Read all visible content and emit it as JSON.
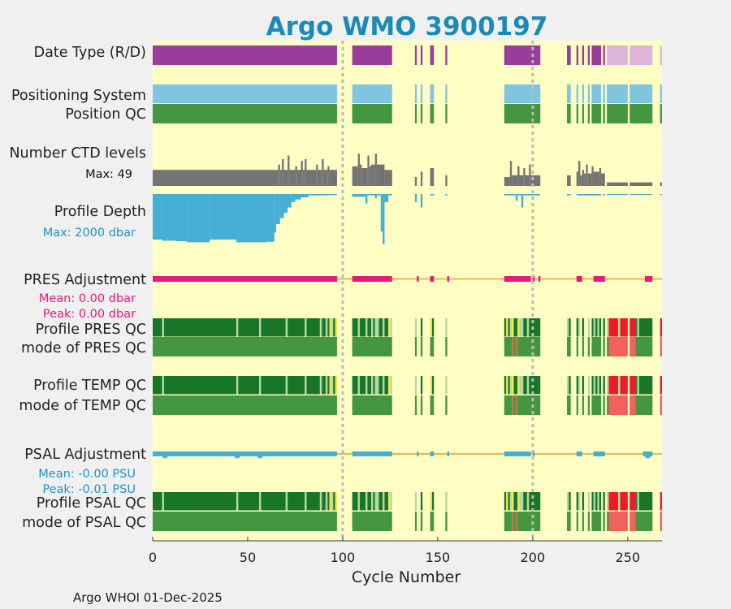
{
  "chart_data": {
    "type": "timeline",
    "title": "Argo WMO 3900197",
    "xlabel": "Cycle Number",
    "xlim": [
      0,
      268
    ],
    "xticks": [
      "0",
      "50",
      "100",
      "150",
      "200",
      "250"
    ],
    "xtick_values": [
      0,
      50,
      100,
      150,
      200,
      250
    ],
    "dashed_markers": [
      100,
      200
    ],
    "footer": "Argo WHOI 01-Dec-2025",
    "present_ranges": [
      [
        0,
        97
      ],
      [
        105,
        126
      ],
      [
        138,
        139
      ],
      [
        141,
        142
      ],
      [
        146,
        148
      ],
      [
        154,
        155
      ],
      [
        185,
        204
      ],
      [
        218,
        220
      ],
      [
        223,
        224
      ],
      [
        226,
        227
      ],
      [
        229,
        230
      ],
      [
        231,
        236
      ],
      [
        237,
        238
      ],
      [
        239,
        250
      ],
      [
        251,
        263
      ],
      [
        267,
        268
      ]
    ],
    "labels": {
      "date_type": "Date Type (R/D)",
      "positioning": "Positioning System",
      "position_qc": "Position QC",
      "nlevels": "Number CTD levels",
      "nlevels_max": "Max: 49",
      "depth": "Profile Depth",
      "depth_max": "Max: 2000 dbar",
      "pres_adj": "PRES Adjustment",
      "pres_mean": "Mean: 0.00 dbar",
      "pres_peak": "Peak: 0.00 dbar",
      "pres_qc": "Profile PRES QC",
      "pres_mode": "mode of PRES QC",
      "temp_qc": "Profile TEMP QC",
      "temp_mode": "mode of TEMP QC",
      "psal_adj": "PSAL Adjustment",
      "psal_mean": "Mean: -0.00 PSU",
      "psal_peak": "Peak: -0.01 PSU",
      "psal_qc": "Profile PSAL QC",
      "psal_mode": "mode of PSAL QC"
    },
    "colors": {
      "plot_bg": "#ffffc4",
      "realtime": "#9a3c9a",
      "delayed": "#ddb5d9",
      "positioning": "#7fc5e0",
      "good": "#44963f",
      "profile_good": "#177628",
      "light_green": "#b5d8a5",
      "yellow": "#f2e84a",
      "red": "#ee1a24",
      "light_red": "#f26060",
      "brown": "#c0704a",
      "nlevels": "#747474",
      "depth": "#44aed4",
      "pres": "#e8187e",
      "psal": "#44aed4",
      "zero_line": "#f0b44e",
      "marker": "#bbbbbb",
      "title": "#1a8ab8"
    },
    "delayed_ranges": [
      [
        239,
        250
      ],
      [
        251,
        263
      ],
      [
        267,
        268
      ]
    ],
    "pres_adjusted_ranges": [
      [
        0,
        97
      ],
      [
        105,
        126
      ],
      [
        139,
        140
      ],
      [
        146,
        148
      ],
      [
        155,
        156
      ],
      [
        185,
        199
      ],
      [
        200,
        201
      ],
      [
        203,
        204
      ],
      [
        223,
        226
      ],
      [
        232,
        238
      ],
      [
        259,
        263
      ]
    ],
    "psal_adjusted_ranges": [
      [
        0,
        97
      ],
      [
        105,
        126
      ],
      [
        139,
        140
      ],
      [
        146,
        148
      ],
      [
        155,
        156
      ],
      [
        185,
        199
      ],
      [
        200,
        201
      ],
      [
        223,
        226
      ],
      [
        232,
        238
      ],
      [
        258,
        263
      ]
    ],
    "psal_dots": [
      6,
      44,
      56,
      260
    ],
    "depth_profile": [
      [
        0,
        5,
        300
      ],
      [
        5,
        12,
        260
      ],
      [
        12,
        18,
        240
      ],
      [
        18,
        30,
        200
      ],
      [
        30,
        44,
        300
      ],
      [
        44,
        60,
        200
      ],
      [
        60,
        64,
        220
      ],
      [
        64,
        65,
        560
      ],
      [
        65,
        67,
        880
      ],
      [
        67,
        69,
        1100
      ],
      [
        69,
        71,
        1300
      ],
      [
        71,
        73,
        1500
      ],
      [
        73,
        75,
        1700
      ],
      [
        75,
        78,
        1800
      ],
      [
        78,
        82,
        1880
      ],
      [
        82,
        92,
        1950
      ],
      [
        92,
        97,
        1960
      ],
      [
        105,
        112,
        1900
      ],
      [
        112,
        113,
        1650
      ],
      [
        113,
        117,
        1950
      ],
      [
        117,
        118,
        1850
      ],
      [
        118,
        120,
        1950
      ],
      [
        120,
        121,
        600
      ],
      [
        121,
        122,
        130
      ],
      [
        122,
        124,
        1700
      ],
      [
        124,
        126,
        1950
      ],
      [
        138,
        139,
        1700
      ],
      [
        141,
        142,
        1500
      ],
      [
        146,
        148,
        1950
      ],
      [
        154,
        155,
        1950
      ],
      [
        185,
        191,
        1950
      ],
      [
        191,
        192,
        1750
      ],
      [
        192,
        194,
        1950
      ],
      [
        194,
        195,
        1500
      ],
      [
        195,
        204,
        1950
      ],
      [
        218,
        220,
        1950
      ],
      [
        223,
        236,
        1950
      ],
      [
        237,
        238,
        1950
      ],
      [
        239,
        250,
        1980
      ],
      [
        251,
        263,
        1980
      ],
      [
        267,
        268,
        1980
      ]
    ],
    "nlevels_profile": [
      [
        0,
        66,
        0.45
      ],
      [
        66,
        67,
        0.6
      ],
      [
        67,
        68,
        0.45
      ],
      [
        68,
        69,
        0.75
      ],
      [
        69,
        71,
        0.45
      ],
      [
        71,
        72,
        0.85
      ],
      [
        72,
        75,
        0.45
      ],
      [
        75,
        76,
        0.55
      ],
      [
        76,
        78,
        0.45
      ],
      [
        78,
        79,
        0.7
      ],
      [
        79,
        80,
        0.45
      ],
      [
        80,
        81,
        0.75
      ],
      [
        81,
        86,
        0.45
      ],
      [
        86,
        87,
        0.6
      ],
      [
        87,
        89,
        0.45
      ],
      [
        89,
        90,
        0.75
      ],
      [
        90,
        92,
        0.45
      ],
      [
        92,
        93,
        0.55
      ],
      [
        93,
        97,
        0.45
      ],
      [
        105,
        108,
        0.55
      ],
      [
        108,
        109,
        0.9
      ],
      [
        109,
        110,
        0.6
      ],
      [
        110,
        113,
        0.5
      ],
      [
        113,
        114,
        0.85
      ],
      [
        114,
        115,
        0.55
      ],
      [
        115,
        117,
        0.6
      ],
      [
        117,
        118,
        0.9
      ],
      [
        118,
        122,
        0.6
      ],
      [
        122,
        126,
        0.45
      ],
      [
        138,
        139,
        0.25
      ],
      [
        141,
        142,
        0.4
      ],
      [
        146,
        148,
        0.5
      ],
      [
        154,
        155,
        0.3
      ],
      [
        185,
        188,
        0.25
      ],
      [
        188,
        189,
        0.7
      ],
      [
        189,
        192,
        0.3
      ],
      [
        192,
        193,
        0.55
      ],
      [
        193,
        195,
        0.3
      ],
      [
        195,
        196,
        0.5
      ],
      [
        196,
        198,
        0.3
      ],
      [
        198,
        199,
        0.6
      ],
      [
        199,
        204,
        0.3
      ],
      [
        218,
        220,
        0.3
      ],
      [
        223,
        224,
        0.4
      ],
      [
        224,
        225,
        0.7
      ],
      [
        225,
        226,
        0.3
      ],
      [
        226,
        227,
        0.45
      ],
      [
        227,
        228,
        0.35
      ],
      [
        228,
        229,
        0.6
      ],
      [
        229,
        231,
        0.35
      ],
      [
        231,
        232,
        0.55
      ],
      [
        232,
        235,
        0.4
      ],
      [
        235,
        236,
        0.5
      ],
      [
        236,
        238,
        0.35
      ],
      [
        239,
        241,
        0.1
      ],
      [
        241,
        250,
        0.1
      ],
      [
        251,
        263,
        0.1
      ],
      [
        267,
        268,
        0.1
      ]
    ],
    "profile_qc": [
      [
        0,
        5,
        "good"
      ],
      [
        5,
        6,
        "light"
      ],
      [
        6,
        44,
        "good"
      ],
      [
        44,
        45,
        "light"
      ],
      [
        45,
        56,
        "good"
      ],
      [
        56,
        57,
        "light"
      ],
      [
        57,
        70,
        "good"
      ],
      [
        70,
        71,
        "light"
      ],
      [
        71,
        80,
        "good"
      ],
      [
        80,
        81,
        "light"
      ],
      [
        81,
        88,
        "good"
      ],
      [
        88,
        89,
        "light"
      ],
      [
        89,
        91,
        "good"
      ],
      [
        91,
        92,
        "light"
      ],
      [
        92,
        93,
        "good"
      ],
      [
        93,
        94,
        "yellow"
      ],
      [
        94,
        95,
        "light"
      ],
      [
        95,
        96,
        "good"
      ],
      [
        96,
        97,
        "yellow"
      ],
      [
        105,
        108,
        "good"
      ],
      [
        108,
        109,
        "light"
      ],
      [
        109,
        112,
        "good"
      ],
      [
        112,
        113,
        "light"
      ],
      [
        113,
        115,
        "good"
      ],
      [
        115,
        116,
        "light"
      ],
      [
        116,
        117,
        "good"
      ],
      [
        117,
        119,
        "light"
      ],
      [
        119,
        121,
        "good"
      ],
      [
        121,
        122,
        "light"
      ],
      [
        122,
        124,
        "good"
      ],
      [
        124,
        125,
        "yellow"
      ],
      [
        125,
        126,
        "light"
      ],
      [
        138,
        139,
        "light"
      ],
      [
        141,
        142,
        "good"
      ],
      [
        146,
        147,
        "yellow"
      ],
      [
        147,
        148,
        "good"
      ],
      [
        154,
        155,
        "light"
      ],
      [
        185,
        186,
        "good"
      ],
      [
        186,
        187,
        "yellow"
      ],
      [
        187,
        188,
        "good"
      ],
      [
        188,
        189,
        "light"
      ],
      [
        189,
        190,
        "yellow"
      ],
      [
        190,
        192,
        "good"
      ],
      [
        192,
        193,
        "yellow"
      ],
      [
        193,
        195,
        "light"
      ],
      [
        195,
        197,
        "good"
      ],
      [
        197,
        198,
        "light"
      ],
      [
        198,
        204,
        "good"
      ],
      [
        218,
        219,
        "light"
      ],
      [
        219,
        220,
        "good"
      ],
      [
        223,
        224,
        "good"
      ],
      [
        224,
        225,
        "light"
      ],
      [
        226,
        227,
        "good"
      ],
      [
        229,
        230,
        "light"
      ],
      [
        231,
        232,
        "good"
      ],
      [
        232,
        233,
        "light"
      ],
      [
        233,
        234,
        "good"
      ],
      [
        234,
        235,
        "light"
      ],
      [
        235,
        236,
        "good"
      ],
      [
        237,
        238,
        "good"
      ],
      [
        239,
        240,
        "light"
      ],
      [
        240,
        245,
        "red"
      ],
      [
        245,
        246,
        "light"
      ],
      [
        246,
        250,
        "red"
      ],
      [
        251,
        254,
        "red"
      ],
      [
        254,
        255,
        "good"
      ],
      [
        255,
        256,
        "light"
      ],
      [
        256,
        263,
        "good"
      ],
      [
        267,
        268,
        "red"
      ]
    ],
    "mode_qc": [
      [
        0,
        97,
        "good"
      ],
      [
        105,
        126,
        "good"
      ],
      [
        138,
        139,
        "good"
      ],
      [
        141,
        142,
        "good"
      ],
      [
        146,
        148,
        "good"
      ],
      [
        154,
        155,
        "good"
      ],
      [
        185,
        189,
        "good"
      ],
      [
        189,
        190,
        "brown"
      ],
      [
        190,
        191,
        "good"
      ],
      [
        191,
        192,
        "brown"
      ],
      [
        192,
        204,
        "good"
      ],
      [
        218,
        220,
        "good"
      ],
      [
        223,
        224,
        "good"
      ],
      [
        226,
        227,
        "good"
      ],
      [
        229,
        230,
        "good"
      ],
      [
        231,
        236,
        "good"
      ],
      [
        237,
        238,
        "good"
      ],
      [
        239,
        240,
        "good"
      ],
      [
        240,
        250,
        "lightred"
      ],
      [
        251,
        254,
        "lightred"
      ],
      [
        254,
        263,
        "good"
      ],
      [
        267,
        268,
        "lightred"
      ]
    ]
  }
}
